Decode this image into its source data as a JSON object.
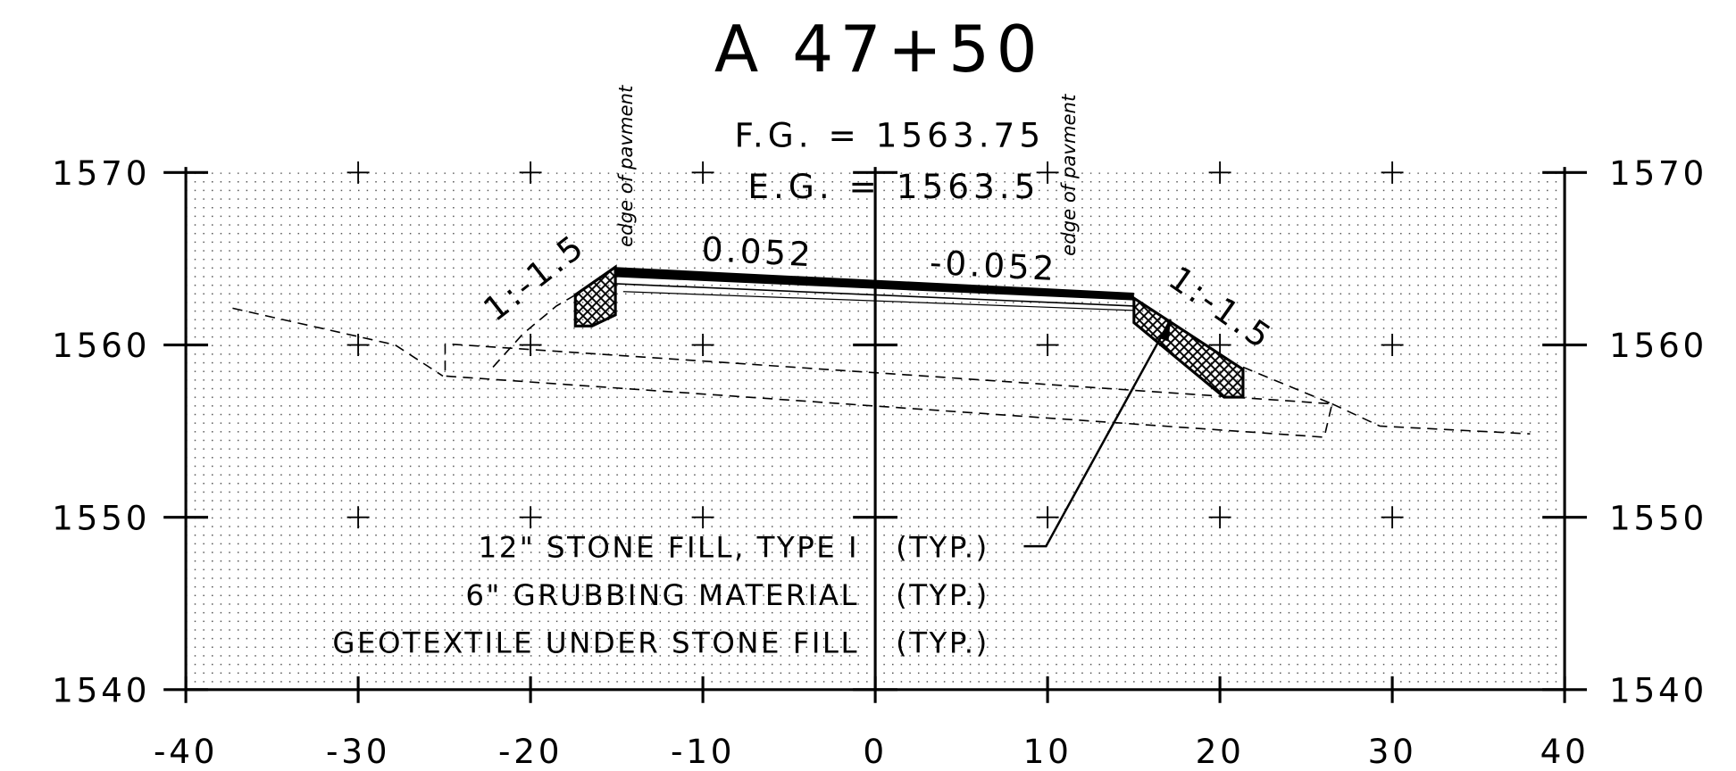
{
  "title": "A 47+50",
  "fg": "F.G. = 1563.75",
  "eg": "E.G. = 1563.5",
  "edge_labels": [
    "edge of pavment",
    "edge of pavment"
  ],
  "slopes": [
    "1:-1.5",
    "0.052",
    "-0.052",
    "1:-1.5"
  ],
  "notes": [
    {
      "text": "12\" STONE FILL, TYPE I",
      "suffix": "(TYP.)"
    },
    {
      "text": "6\" GRUBBING MATERIAL",
      "suffix": "(TYP.)"
    },
    {
      "text": "GEOTEXTILE UNDER STONE FILL",
      "suffix": "(TYP.)"
    }
  ],
  "axes": {
    "xlim": [
      -40,
      40
    ],
    "xticks": [
      -40,
      -30,
      -20,
      -10,
      0,
      10,
      20,
      30,
      40
    ],
    "ylim": [
      1540,
      1570
    ],
    "yticks": [
      1540,
      1550,
      1560,
      1570
    ]
  }
}
